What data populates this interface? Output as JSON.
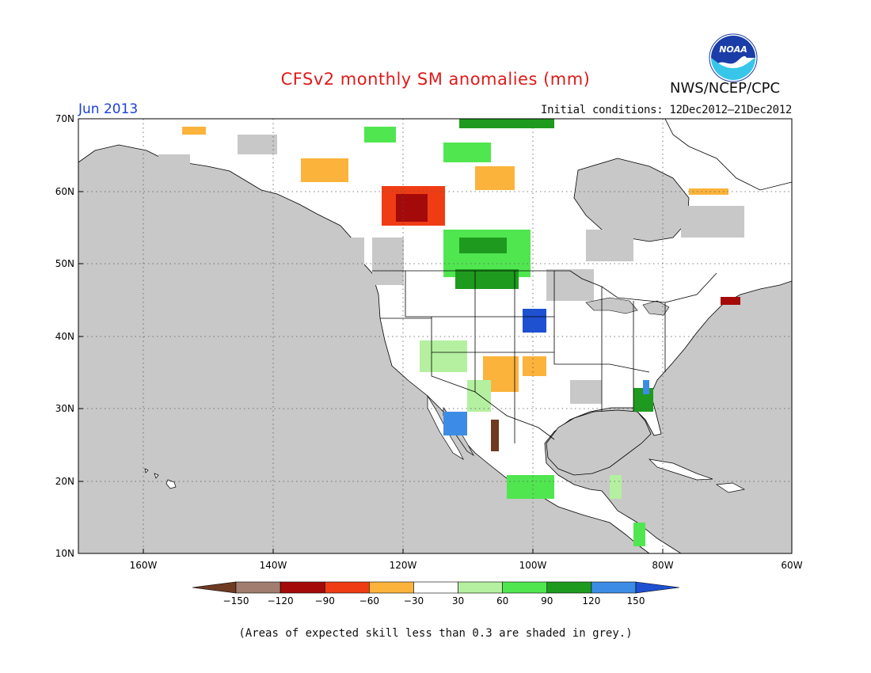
{
  "header": {
    "title": "CFSv2 monthly SM anomalies (mm)",
    "month": "Jun 2013",
    "initial_conditions": "Initial conditions: 12Dec2012–21Dec2012",
    "organization": "NWS/NCEP/CPC",
    "logo_text": "NOAA"
  },
  "map": {
    "lat_labels": [
      "70N",
      "60N",
      "50N",
      "40N",
      "30N",
      "20N",
      "10N"
    ],
    "lon_labels": [
      "160W",
      "140W",
      "120W",
      "100W",
      "80W",
      "60W"
    ],
    "ocean_color": "#c8c8c8",
    "land_color": "#ffffff",
    "region": "North America"
  },
  "legend": {
    "tick_labels": [
      "−150",
      "−120",
      "−90",
      "−60",
      "−30",
      "30",
      "60",
      "90",
      "120",
      "150"
    ],
    "bins": [
      {
        "range": "< -150",
        "color": "#6e3a22"
      },
      {
        "range": "-150 to -120",
        "color": "#a07d6e"
      },
      {
        "range": "-120 to -90",
        "color": "#a50a0a"
      },
      {
        "range": "-90 to -60",
        "color": "#f03c14"
      },
      {
        "range": "-60 to -30",
        "color": "#fbb33c"
      },
      {
        "range": "-30 to 30",
        "color": "#ffffff"
      },
      {
        "range": "30 to 60",
        "color": "#b4f0a0"
      },
      {
        "range": "60 to 90",
        "color": "#50e650"
      },
      {
        "range": "90 to 120",
        "color": "#1e9b1e"
      },
      {
        "range": "120 to 150",
        "color": "#3c8ce6"
      },
      {
        "range": "> 150",
        "color": "#1e50d2"
      }
    ]
  },
  "footnote": "(Areas of expected skill less than 0.3 are shaded in grey.)"
}
